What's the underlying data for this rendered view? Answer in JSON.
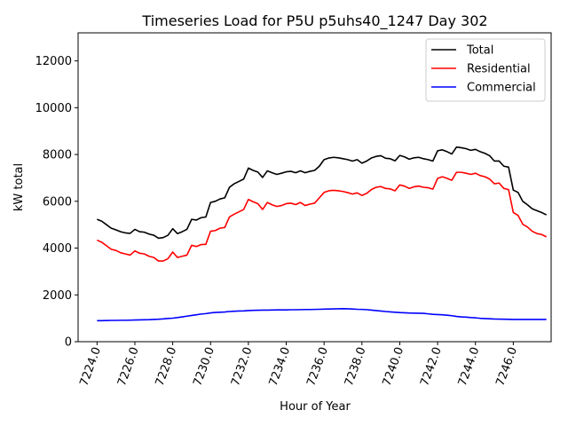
{
  "chart_data": {
    "type": "line",
    "title": "Timeseries Load for P5U p5uhs40_1247  Day 302",
    "xlabel": "Hour of Year",
    "ylabel": "kW total",
    "xlim": [
      7223.0,
      7248.0
    ],
    "ylim": [
      0,
      13200
    ],
    "x_ticks": [
      7224,
      7226,
      7228,
      7230,
      7232,
      7234,
      7236,
      7238,
      7240,
      7242,
      7244,
      7246
    ],
    "x_tick_labels": [
      "7224.0",
      "7226.0",
      "7228.0",
      "7230.0",
      "7232.0",
      "7234.0",
      "7236.0",
      "7238.0",
      "7240.0",
      "7242.0",
      "7244.0",
      "7246.0"
    ],
    "y_ticks": [
      0,
      2000,
      4000,
      6000,
      8000,
      10000,
      12000
    ],
    "y_tick_labels": [
      "0",
      "2000",
      "4000",
      "6000",
      "8000",
      "10000",
      "12000"
    ],
    "legend_position": "top-right",
    "x": [
      7224.0,
      7224.25,
      7224.5,
      7224.75,
      7225.0,
      7225.25,
      7225.5,
      7225.75,
      7226.0,
      7226.25,
      7226.5,
      7226.75,
      7227.0,
      7227.25,
      7227.5,
      7227.75,
      7228.0,
      7228.25,
      7228.5,
      7228.75,
      7229.0,
      7229.25,
      7229.5,
      7229.75,
      7230.0,
      7230.25,
      7230.5,
      7230.75,
      7231.0,
      7231.25,
      7231.5,
      7231.75,
      7232.0,
      7232.25,
      7232.5,
      7232.75,
      7233.0,
      7233.25,
      7233.5,
      7233.75,
      7234.0,
      7234.25,
      7234.5,
      7234.75,
      7235.0,
      7235.25,
      7235.5,
      7235.75,
      7236.0,
      7236.25,
      7236.5,
      7236.75,
      7237.0,
      7237.25,
      7237.5,
      7237.75,
      7238.0,
      7238.25,
      7238.5,
      7238.75,
      7239.0,
      7239.25,
      7239.5,
      7239.75,
      7240.0,
      7240.25,
      7240.5,
      7240.75,
      7241.0,
      7241.25,
      7241.5,
      7241.75,
      7242.0,
      7242.25,
      7242.5,
      7242.75,
      7243.0,
      7243.25,
      7243.5,
      7243.75,
      7244.0,
      7244.25,
      7244.5,
      7244.75,
      7245.0,
      7245.25,
      7245.5,
      7245.75,
      7246.0,
      7246.25,
      7246.5,
      7246.75,
      7247.0,
      7247.25,
      7247.5,
      7247.75
    ],
    "series": [
      {
        "name": "Total",
        "color": "#000000",
        "values": [
          5230,
          5150,
          5000,
          4850,
          4780,
          4700,
          4650,
          4630,
          4800,
          4700,
          4680,
          4600,
          4550,
          4420,
          4450,
          4550,
          4830,
          4620,
          4700,
          4800,
          5230,
          5200,
          5300,
          5330,
          5950,
          6000,
          6100,
          6150,
          6600,
          6750,
          6850,
          6950,
          7420,
          7320,
          7250,
          7020,
          7300,
          7220,
          7150,
          7200,
          7260,
          7280,
          7220,
          7300,
          7220,
          7280,
          7320,
          7500,
          7780,
          7850,
          7880,
          7860,
          7820,
          7780,
          7720,
          7780,
          7630,
          7720,
          7850,
          7920,
          7950,
          7840,
          7820,
          7730,
          7960,
          7900,
          7800,
          7860,
          7880,
          7820,
          7780,
          7720,
          8160,
          8200,
          8120,
          8020,
          8320,
          8290,
          8250,
          8180,
          8220,
          8120,
          8050,
          7950,
          7720,
          7720,
          7500,
          7460,
          6480,
          6380,
          6000,
          5850,
          5680,
          5600,
          5520,
          5420
        ]
      },
      {
        "name": "Residential",
        "color": "#ff0000",
        "values": [
          4340,
          4250,
          4100,
          3950,
          3900,
          3800,
          3750,
          3700,
          3880,
          3780,
          3750,
          3650,
          3600,
          3450,
          3450,
          3550,
          3830,
          3600,
          3650,
          3700,
          4120,
          4070,
          4150,
          4160,
          4720,
          4750,
          4850,
          4880,
          5330,
          5450,
          5550,
          5650,
          6080,
          5980,
          5900,
          5650,
          5950,
          5850,
          5780,
          5820,
          5900,
          5920,
          5860,
          5950,
          5820,
          5880,
          5920,
          6150,
          6380,
          6450,
          6470,
          6450,
          6420,
          6370,
          6310,
          6360,
          6250,
          6340,
          6500,
          6600,
          6630,
          6550,
          6530,
          6450,
          6700,
          6650,
          6550,
          6620,
          6650,
          6600,
          6580,
          6520,
          6980,
          7050,
          6980,
          6900,
          7240,
          7240,
          7200,
          7150,
          7200,
          7100,
          7050,
          6950,
          6750,
          6780,
          6550,
          6500,
          5520,
          5400,
          5020,
          4900,
          4720,
          4620,
          4580,
          4480
        ]
      },
      {
        "name": "Commercial",
        "color": "#0000ff",
        "values": [
          900,
          900,
          905,
          910,
          910,
          915,
          915,
          920,
          925,
          930,
          935,
          940,
          950,
          960,
          975,
          995,
          1005,
          1030,
          1060,
          1090,
          1120,
          1150,
          1180,
          1200,
          1230,
          1250,
          1260,
          1270,
          1290,
          1300,
          1310,
          1315,
          1330,
          1340,
          1345,
          1350,
          1350,
          1355,
          1360,
          1360,
          1360,
          1365,
          1365,
          1370,
          1375,
          1375,
          1380,
          1385,
          1390,
          1395,
          1400,
          1405,
          1410,
          1405,
          1395,
          1385,
          1380,
          1370,
          1350,
          1330,
          1310,
          1290,
          1275,
          1260,
          1245,
          1235,
          1225,
          1220,
          1215,
          1210,
          1190,
          1170,
          1160,
          1150,
          1130,
          1110,
          1080,
          1060,
          1050,
          1030,
          1020,
          1000,
          990,
          980,
          970,
          965,
          960,
          955,
          950,
          950,
          950,
          950,
          950,
          950,
          950,
          950
        ]
      }
    ]
  }
}
